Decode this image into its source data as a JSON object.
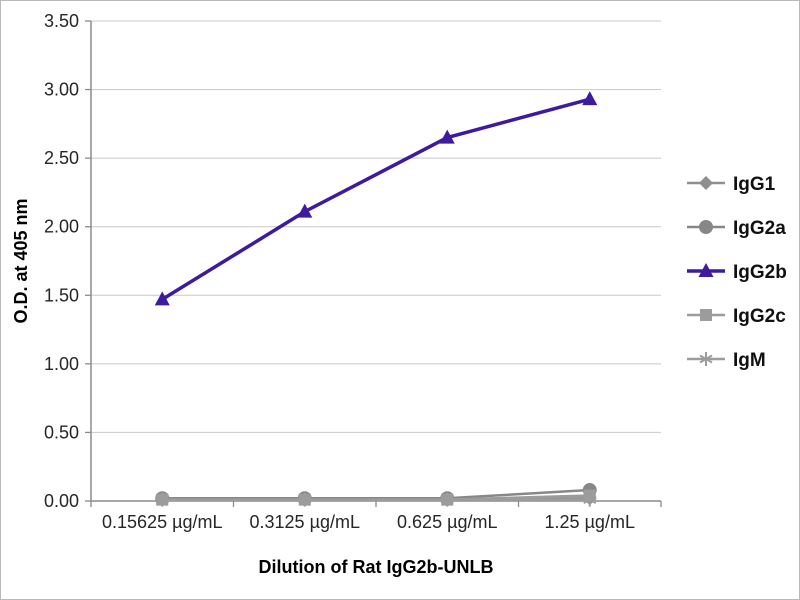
{
  "figure": {
    "background": "#ffffff",
    "border_color": "#b9b9b9"
  },
  "chart_data": {
    "type": "line",
    "title": "",
    "xlabel": "Dilution of Rat IgG2b-UNLB",
    "ylabel": "O.D. at 405 nm",
    "categories": [
      "0.15625 µg/mL",
      "0.3125 µg/mL",
      "0.625 µg/mL",
      "1.25 µg/mL"
    ],
    "ylim": [
      0,
      3.5
    ],
    "ytick_step": 0.5,
    "ytick_labels": [
      "0.00",
      "0.50",
      "1.00",
      "1.50",
      "2.00",
      "2.50",
      "3.00",
      "3.50"
    ],
    "grid": "horizontal",
    "grid_color": "#c8c8c8",
    "axis_color": "#8c8c8c",
    "legend_position": "right",
    "series": [
      {
        "name": "IgG1",
        "marker": "diamond",
        "color": "#8f8f8f",
        "values": [
          0.01,
          0.01,
          0.01,
          0.02
        ]
      },
      {
        "name": "IgG2a",
        "marker": "circle",
        "color": "#878787",
        "values": [
          0.02,
          0.02,
          0.02,
          0.08
        ]
      },
      {
        "name": "IgG2b",
        "marker": "triangle",
        "color": "#3d1a9e",
        "values": [
          1.47,
          2.11,
          2.65,
          2.93
        ]
      },
      {
        "name": "IgG2c",
        "marker": "square",
        "color": "#9c9c9c",
        "values": [
          0.01,
          0.01,
          0.01,
          0.04
        ]
      },
      {
        "name": "IgM",
        "marker": "asterisk",
        "color": "#9c9c9c",
        "values": [
          0.01,
          0.01,
          0.01,
          0.01
        ]
      }
    ]
  }
}
